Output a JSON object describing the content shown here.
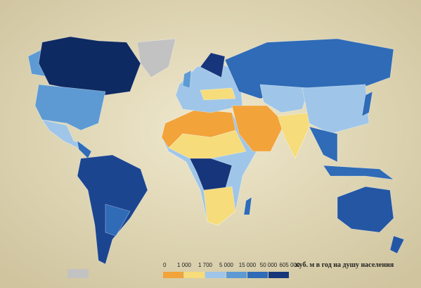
{
  "map": {
    "legend": {
      "title": "куб. м в год на душу населения",
      "ticks": [
        0,
        {
          "value": 1000,
          "label": "1 000"
        },
        {
          "value": 1700,
          "label": "1 700"
        },
        {
          "value": 5000,
          "label": "5 000"
        },
        {
          "value": 15000,
          "label": "15 000"
        },
        {
          "value": 50000,
          "label": "50 000"
        },
        {
          "value": 605000,
          "label": "605 000"
        }
      ],
      "colors": [
        "#f2a33a",
        "#f6dc7a",
        "#9fc6e8",
        "#5d9ad3",
        "#2f6bb6",
        "#16357a"
      ],
      "no_data_color": "#c2c2c2"
    }
  }
}
